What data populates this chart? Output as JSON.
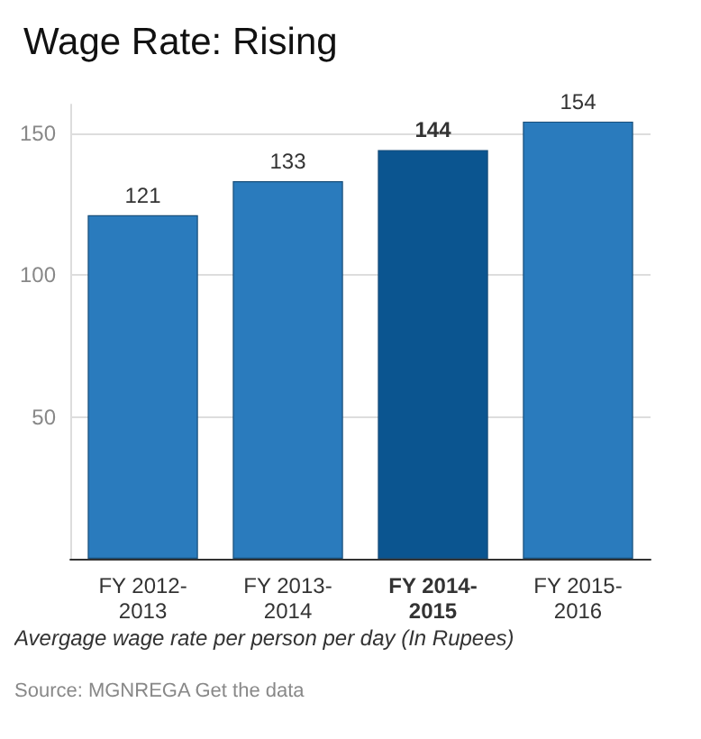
{
  "chart_data": {
    "type": "bar",
    "title": "Wage Rate: Rising",
    "categories": [
      "FY 2012-2013",
      "FY 2013-2014",
      "FY 2014-2015",
      "FY 2015-2016"
    ],
    "values": [
      121,
      133,
      144,
      154
    ],
    "colors": [
      "#2a7bbd",
      "#2a7bbd",
      "#0b5590",
      "#2a7bbd"
    ],
    "data_labels": true,
    "xlabel": "Avergage wage rate per person per day (In Rupees)",
    "ylim": [
      0,
      160
    ],
    "yticks": [
      {
        "value": 0,
        "label": null
      },
      50,
      100,
      150
    ],
    "grid": "y",
    "annotations": [
      "Source: MGNREGA Get the data"
    ]
  }
}
